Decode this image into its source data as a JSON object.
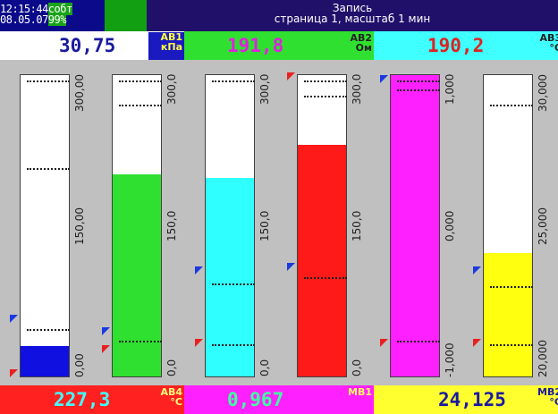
{
  "header": {
    "time": "12:15:44",
    "date": "08.05.07",
    "status_word": "собт",
    "status_percent": "99%",
    "title_line1": "Запись",
    "title_line2": "страница 1, масштаб 1 мин"
  },
  "top_values": [
    {
      "value": "30,75",
      "tag1": "АВ1",
      "tag2": "кПа",
      "bg": "#ffffff",
      "fg": "#1a1aa0",
      "tagbg": "#1a1ac0",
      "tagfg": "#ffff40"
    },
    {
      "value": "191,8",
      "tag1": "АВ2",
      "tag2": "Ом",
      "bg": "#30e030",
      "fg": "#e020e0",
      "tagbg": "#30e030",
      "tagfg": "#202020"
    },
    {
      "value": "190,2",
      "tag1": "АВ3",
      "tag2": "°С",
      "bg": "#40ffff",
      "fg": "#e02020",
      "tagbg": "#40ffff",
      "tagfg": "#202020"
    }
  ],
  "bottom_values": [
    {
      "value": "227,3",
      "tag1": "АВ4",
      "tag2": "°С",
      "bg": "#ff2020",
      "fg": "#40ffff",
      "tagfg": "#ffff80"
    },
    {
      "value": "0,967",
      "tag1": "МВ1",
      "tag2": "",
      "bg": "#ff20ff",
      "fg": "#40ffa0",
      "tagfg": "#ffff60"
    },
    {
      "value": "24,125",
      "tag1": "МВ2",
      "tag2": "°С",
      "bg": "#ffff30",
      "fg": "#1a1aa0",
      "tagfg": "#1a1aa0"
    }
  ],
  "bars": [
    {
      "name": "AB1",
      "color": "#1010e0",
      "fill_fraction": 0.1,
      "scale_labels": [
        "0,00",
        "150,00",
        "300,00"
      ],
      "red_marker_fraction": 0.0,
      "blue_marker_fraction": 0.18,
      "dotted_fractions": [
        0.16,
        0.69,
        0.98
      ]
    },
    {
      "name": "AB2",
      "color": "#30e030",
      "fill_fraction": 0.67,
      "scale_labels": [
        "0,0",
        "150,0",
        "300,0"
      ],
      "red_marker_fraction": 0.08,
      "blue_marker_fraction": 0.14,
      "dotted_fractions": [
        0.12,
        0.98,
        0.9
      ]
    },
    {
      "name": "AB3",
      "color": "#30ffff",
      "fill_fraction": 0.66,
      "scale_labels": [
        "0,0",
        "150,0",
        "300,0"
      ],
      "red_marker_fraction": 0.1,
      "blue_marker_fraction": 0.34,
      "dotted_fractions": [
        0.11,
        0.31,
        0.98
      ]
    },
    {
      "name": "AB4",
      "color": "#ff1a1a",
      "fill_fraction": 0.77,
      "scale_labels": [
        "0,0",
        "150,0",
        "300,0"
      ],
      "red_marker_fraction": 0.98,
      "blue_marker_fraction": 0.35,
      "dotted_fractions": [
        0.33,
        0.93,
        0.98
      ]
    },
    {
      "name": "MB1",
      "color": "#ff20ff",
      "fill_fraction": 1.0,
      "scale_labels": [
        "-1,000",
        "0,000",
        "1,000"
      ],
      "red_marker_fraction": 0.1,
      "blue_marker_fraction": 0.97,
      "dotted_fractions": [
        0.12,
        0.95,
        0.98
      ]
    },
    {
      "name": "MB2",
      "color": "#ffff10",
      "fill_fraction": 0.41,
      "scale_labels": [
        "20,000",
        "25,000",
        "30,000"
      ],
      "red_marker_fraction": 0.1,
      "blue_marker_fraction": 0.34,
      "dotted_fractions": [
        0.11,
        0.3,
        0.9
      ]
    }
  ]
}
